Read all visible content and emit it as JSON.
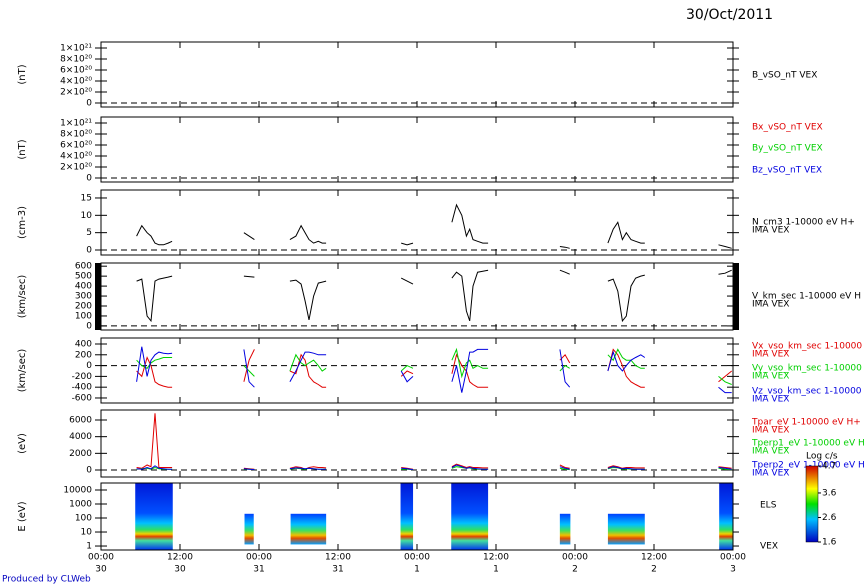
{
  "date": "30/Oct/2011",
  "footer": "Produced by CLWeb",
  "chart_data": [
    {
      "type": "line",
      "ylabel": "(nT)",
      "xlim": [
        0,
        96
      ],
      "ylim": [
        -7.3e+19,
        1.109e+21
      ],
      "yticks": [
        0,
        {
          "value": 2e+20,
          "label": "2×10²⁰"
        },
        {
          "value": 4e+20,
          "label": "4×10²⁰"
        },
        {
          "value": 6e+20,
          "label": "6×10²⁰"
        },
        {
          "value": 8e+20,
          "label": "8×10²⁰"
        },
        {
          "value": 1e+21,
          "label": "1×10²¹"
        }
      ],
      "series": [
        {
          "name": "B_vSO_nT VEX",
          "color": "#000000"
        }
      ]
    },
    {
      "type": "line",
      "ylabel": "(nT)",
      "xlim": [
        0,
        96
      ],
      "ylim": [
        -7.3e+19,
        1.109e+21
      ],
      "yticks": [
        0,
        {
          "value": 2e+20,
          "label": "2×10²⁰"
        },
        {
          "value": 4e+20,
          "label": "4×10²⁰"
        },
        {
          "value": 6e+20,
          "label": "6×10²⁰"
        },
        {
          "value": 8e+20,
          "label": "8×10²⁰"
        },
        {
          "value": 1e+21,
          "label": "1×10²¹"
        }
      ],
      "series": [
        {
          "name": "Bx_vSO_nT VEX",
          "color": "#e00000"
        },
        {
          "name": "By_vSO_nT VEX",
          "color": "#00d000"
        },
        {
          "name": "Bz_vSO_nT VEX",
          "color": "#0000e0"
        }
      ]
    },
    {
      "type": "line",
      "ylabel": "(cm-3)",
      "xlim": [
        0,
        96
      ],
      "ylim": [
        -1.44,
        17.3
      ],
      "yticks": [
        0,
        5,
        10,
        15
      ],
      "x": [
        5.4,
        6.2,
        7,
        7.6,
        8.2,
        8.8,
        9.5,
        10.2,
        10.8,
        15,
        21.7,
        22.5,
        23.3,
        26,
        28.7,
        29.6,
        30.4,
        31,
        31.6,
        32.3,
        33,
        33.6,
        34.2,
        40,
        45.6,
        46.5,
        47.4,
        50,
        53.3,
        54,
        54.8,
        55.5,
        56,
        56.5,
        57.2,
        58,
        58.8,
        65,
        69.7,
        70.5,
        71.2,
        74,
        77,
        77.8,
        78.5,
        79.2,
        79.8,
        80.5,
        81.2,
        82,
        82.6,
        88,
        93.8,
        94.8,
        95.8
      ],
      "series": [
        {
          "name": "N_cm3 1-10000 eV H+",
          "instrument": "IMA VEX",
          "color": "#000000",
          "values": [
            4,
            7,
            5,
            4,
            2,
            1.5,
            1.5,
            2,
            2.5,
            null,
            5,
            4,
            3,
            null,
            3,
            4,
            7,
            5,
            3,
            2,
            2.5,
            2,
            2,
            null,
            2,
            1.5,
            2,
            null,
            8,
            13,
            10,
            4,
            6,
            3,
            2.5,
            2,
            2,
            null,
            1,
            0.8,
            0.5,
            null,
            2,
            6,
            8,
            3,
            5,
            3,
            2.5,
            2,
            2,
            null,
            1.5,
            1,
            0.5
          ]
        }
      ]
    },
    {
      "type": "line",
      "ylabel": "(km/sec)",
      "xlim": [
        0,
        96
      ],
      "ylim": [
        -41,
        632
      ],
      "yticks": [
        0,
        100,
        200,
        300,
        400,
        500,
        600
      ],
      "x": [
        5.4,
        6.2,
        7,
        7.6,
        8.2,
        8.8,
        9.5,
        10.2,
        10.8,
        15,
        21.7,
        22.5,
        23.3,
        26,
        28.7,
        29.6,
        30.4,
        31,
        31.6,
        32.3,
        33,
        33.6,
        34.2,
        40,
        45.6,
        46.5,
        47.4,
        50,
        53.3,
        54,
        54.8,
        55.5,
        56,
        56.5,
        57.2,
        58,
        58.8,
        65,
        69.7,
        70.5,
        71.2,
        74,
        77,
        77.8,
        78.5,
        79.2,
        79.8,
        80.5,
        81.2,
        82,
        82.6,
        88,
        93.8,
        94.8,
        95.8
      ],
      "series": [
        {
          "name": "V_km_sec 1-10000 eV H",
          "instrument": "IMA VEX",
          "color": "#000000",
          "values": [
            450,
            470,
            100,
            50,
            450,
            470,
            480,
            490,
            500,
            null,
            500,
            495,
            490,
            null,
            450,
            460,
            420,
            250,
            60,
            300,
            430,
            440,
            450,
            null,
            480,
            450,
            420,
            null,
            480,
            540,
            500,
            150,
            50,
            400,
            540,
            550,
            560,
            null,
            560,
            540,
            520,
            null,
            450,
            470,
            350,
            50,
            100,
            400,
            480,
            500,
            510,
            null,
            520,
            530,
            560
          ]
        }
      ]
    },
    {
      "type": "line",
      "ylabel": "(km/sec)",
      "xlim": [
        0,
        96
      ],
      "ylim": [
        -693,
        511
      ],
      "yticks": [
        -600,
        -400,
        -200,
        0,
        200,
        400
      ],
      "x": [
        5.4,
        6.2,
        7,
        7.6,
        8.2,
        8.8,
        9.5,
        10.2,
        10.8,
        15,
        21.7,
        22.5,
        23.3,
        26,
        28.7,
        29.6,
        30.4,
        31,
        31.6,
        32.3,
        33,
        33.6,
        34.2,
        40,
        45.6,
        46.5,
        47.4,
        50,
        53.3,
        54,
        54.8,
        55.5,
        56,
        56.5,
        57.2,
        58,
        58.8,
        65,
        69.7,
        70.5,
        71.2,
        74,
        77,
        77.8,
        78.5,
        79.2,
        79.8,
        80.5,
        81.2,
        82,
        82.6,
        88,
        93.8,
        94.8,
        95.8
      ],
      "series": [
        {
          "name": "Vx_vso_km_sec 1-10000",
          "instrument": "IMA VEX",
          "color": "#e00000",
          "values": [
            -100,
            -200,
            150,
            0,
            -300,
            -350,
            -380,
            -400,
            -400,
            null,
            -300,
            100,
            300,
            null,
            -100,
            -150,
            200,
            100,
            -200,
            -300,
            -350,
            -400,
            -400,
            null,
            -200,
            -100,
            -150,
            null,
            -150,
            200,
            0,
            -100,
            -300,
            -350,
            -400,
            -400,
            -400,
            null,
            100,
            200,
            50,
            null,
            -100,
            300,
            200,
            0,
            -200,
            -300,
            -350,
            -400,
            -400,
            null,
            -300,
            -200,
            -100
          ]
        },
        {
          "name": "Vy_vso_km_sec 1-10000",
          "instrument": "IMA VEX",
          "color": "#00d000",
          "values": [
            100,
            0,
            -50,
            50,
            100,
            120,
            150,
            150,
            150,
            null,
            0,
            -100,
            -200,
            null,
            -100,
            200,
            50,
            0,
            50,
            100,
            0,
            -100,
            -50,
            null,
            -100,
            0,
            -50,
            null,
            100,
            300,
            -200,
            50,
            100,
            -50,
            0,
            -50,
            -50,
            null,
            -100,
            0,
            -50,
            null,
            200,
            100,
            300,
            150,
            100,
            100,
            0,
            -50,
            -50,
            null,
            -200,
            -300,
            -350
          ]
        },
        {
          "name": "Vz_vso_km_sec 1-10000",
          "instrument": "IMA VEX",
          "color": "#0000e0",
          "values": [
            -300,
            350,
            -200,
            100,
            200,
            250,
            230,
            220,
            230,
            null,
            300,
            -300,
            -400,
            null,
            -300,
            -100,
            100,
            250,
            250,
            230,
            200,
            200,
            200,
            null,
            -100,
            -300,
            -200,
            null,
            -300,
            0,
            -500,
            -100,
            250,
            250,
            300,
            300,
            300,
            null,
            300,
            -300,
            -400,
            null,
            -100,
            250,
            0,
            -100,
            0,
            100,
            150,
            200,
            150,
            null,
            -400,
            -500,
            -500
          ]
        }
      ]
    },
    {
      "type": "line",
      "ylabel": "(eV)",
      "xlim": [
        0,
        96
      ],
      "ylim": [
        -840,
        7200
      ],
      "yticks": [
        0,
        2000,
        4000,
        6000
      ],
      "x": [
        5.4,
        6.2,
        7,
        7.6,
        8.2,
        8.8,
        9.5,
        10.2,
        10.8,
        15,
        21.7,
        22.5,
        23.3,
        26,
        28.7,
        29.6,
        30.4,
        31,
        31.6,
        32.3,
        33,
        33.6,
        34.2,
        40,
        45.6,
        46.5,
        47.4,
        50,
        53.3,
        54,
        54.8,
        55.5,
        56,
        56.5,
        57.2,
        58,
        58.8,
        65,
        69.7,
        70.5,
        71.2,
        74,
        77,
        77.8,
        78.5,
        79.2,
        79.8,
        80.5,
        81.2,
        82,
        82.6,
        88,
        93.8,
        94.8,
        95.8
      ],
      "series": [
        {
          "name": "Tpar_eV 1-10000 eV H+",
          "instrument": "IMA VEX",
          "color": "#e00000",
          "values": [
            300,
            200,
            600,
            400,
            6800,
            300,
            300,
            300,
            300,
            null,
            200,
            150,
            100,
            null,
            200,
            400,
            300,
            100,
            300,
            400,
            300,
            300,
            250,
            null,
            300,
            200,
            100,
            null,
            400,
            700,
            500,
            300,
            400,
            300,
            300,
            250,
            250,
            null,
            600,
            300,
            200,
            null,
            300,
            500,
            400,
            200,
            300,
            300,
            250,
            250,
            250,
            null,
            400,
            300,
            200
          ]
        },
        {
          "name": "Tperp1_eV 1-10000 eV H+",
          "instrument": "IMA VEX",
          "color": "#00d000",
          "values": [
            100,
            150,
            200,
            100,
            300,
            150,
            100,
            100,
            100,
            null,
            100,
            100,
            50,
            null,
            100,
            200,
            150,
            100,
            200,
            150,
            100,
            100,
            100,
            null,
            100,
            100,
            50,
            null,
            200,
            400,
            300,
            200,
            250,
            150,
            100,
            100,
            100,
            null,
            200,
            100,
            50,
            null,
            150,
            300,
            250,
            100,
            150,
            100,
            100,
            100,
            100,
            null,
            200,
            100,
            50
          ]
        },
        {
          "name": "Tperp2_eV 1-10000 eV H+",
          "instrument": "IMA VEX",
          "color": "#0000e0",
          "values": [
            150,
            100,
            300,
            150,
            500,
            200,
            150,
            100,
            100,
            null,
            150,
            100,
            50,
            null,
            150,
            250,
            200,
            150,
            200,
            150,
            100,
            100,
            100,
            null,
            200,
            150,
            50,
            null,
            300,
            600,
            400,
            200,
            300,
            200,
            150,
            100,
            100,
            null,
            400,
            200,
            100,
            null,
            200,
            400,
            300,
            150,
            200,
            150,
            100,
            100,
            100,
            null,
            300,
            200,
            100
          ]
        }
      ]
    },
    {
      "type": "spectrogram",
      "ylabel": "E (eV)",
      "log_y": true,
      "xlim": [
        0,
        96
      ],
      "ylim": [
        0.52,
        31600
      ],
      "yticks": [
        1,
        10,
        100,
        1000,
        10000
      ],
      "xticks": [
        {
          "value": 0,
          "label": "00:00"
        },
        {
          "value": 12,
          "label": "12:00"
        },
        {
          "value": 24,
          "label": "00:00"
        },
        {
          "value": 36,
          "label": "12:00"
        },
        {
          "value": 48,
          "label": "00:00"
        },
        {
          "value": 60,
          "label": "12:00"
        },
        {
          "value": 72,
          "label": "00:00"
        },
        {
          "value": 84,
          "label": "12:00"
        },
        {
          "value": 96,
          "label": "00:00"
        }
      ],
      "xtick_days": [
        "30",
        "30",
        "31",
        "31",
        "1",
        "1",
        "2",
        "2",
        "3"
      ],
      "label": "ELS",
      "sublabel": "VEX",
      "intervals": [
        {
          "x": [
            5.2,
            10.9
          ],
          "e": [
            0.52,
            31600
          ]
        },
        {
          "x": [
            21.8,
            23.2
          ],
          "e": [
            1.3,
            200
          ]
        },
        {
          "x": [
            28.8,
            34.2
          ],
          "e": [
            1.3,
            200
          ]
        },
        {
          "x": [
            45.5,
            47.4
          ],
          "e": [
            0.52,
            31600
          ]
        },
        {
          "x": [
            53.2,
            58.8
          ],
          "e": [
            0.52,
            31600
          ]
        },
        {
          "x": [
            69.7,
            71.3
          ],
          "e": [
            1.3,
            200
          ]
        },
        {
          "x": [
            77,
            82.6
          ],
          "e": [
            1.3,
            200
          ]
        },
        {
          "x": [
            93.9,
            96
          ],
          "e": [
            0.52,
            31600
          ]
        }
      ],
      "colorbar": {
        "title": "Log c/s",
        "lim": [
          1.6,
          4.7
        ],
        "ticks": [
          1.6,
          2.6,
          3.6,
          4.7
        ]
      }
    }
  ]
}
